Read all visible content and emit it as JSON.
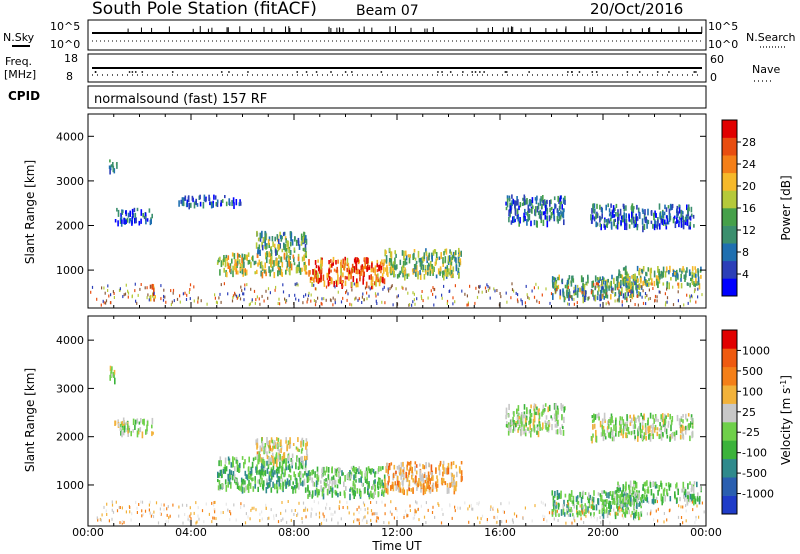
{
  "header": {
    "station": "South Pole Station (fitACF)",
    "beam": "Beam 07",
    "date": "20/Oct/2016"
  },
  "param_panel": {
    "nsky_label": "N.Sky",
    "nsky_ticks": [
      "10^5",
      "10^0"
    ],
    "nsearch_label": "N.Search",
    "nsearch_ticks": [
      "10^5",
      "10^0"
    ],
    "freq_label_1": "Freq.",
    "freq_label_2": "[MHz]",
    "freq_ticks": [
      "18",
      "8"
    ],
    "nave_label": "Nave",
    "nave_ticks": [
      "60",
      "0"
    ],
    "cpid_label": "CPID",
    "cpid_value": "normalsound (fast) 157 RF"
  },
  "colors": {
    "power_scale": [
      "#0000ff",
      "#2c3fb8",
      "#1f6fb0",
      "#3b8f6e",
      "#46a04a",
      "#b5c93a",
      "#f6b92a",
      "#f47f18",
      "#e84d10",
      "#e00000"
    ],
    "velocity_scale": [
      "#1f3cc8",
      "#2a5fb0",
      "#2f8a8c",
      "#3bb33b",
      "#6fd04a",
      "#c8c8c8",
      "#f2b23a",
      "#f47f18",
      "#ef5a10",
      "#e00000"
    ]
  },
  "chart_data": [
    {
      "type": "heatmap",
      "name": "power",
      "xlabel": "Time UT",
      "ylabel": "Slant Range [km]",
      "colorbar_label": "Power [dB]",
      "colorbar_ticks": [
        "28",
        "24",
        "20",
        "16",
        "12",
        "8",
        "4"
      ],
      "colorbar_range": [
        0,
        30
      ],
      "xlim_hours": [
        0,
        24
      ],
      "ylim": [
        150,
        4500
      ],
      "yticks": [
        "4000",
        "3000",
        "2000",
        "1000"
      ],
      "xticks": [
        "00:00",
        "04:00",
        "08:00",
        "12:00",
        "16:00",
        "20:00",
        "00:00"
      ],
      "regions": [
        {
          "t0": 5.0,
          "t1": 8.5,
          "r0": 950,
          "r1": 1400,
          "power": 16
        },
        {
          "t0": 6.5,
          "t1": 8.5,
          "r0": 1400,
          "r1": 1900,
          "power": 12
        },
        {
          "t0": 8.5,
          "t1": 11.5,
          "r0": 700,
          "r1": 1300,
          "power": 24
        },
        {
          "t0": 11.5,
          "t1": 14.5,
          "r0": 900,
          "r1": 1500,
          "power": 14
        },
        {
          "t0": 0.8,
          "t1": 1.1,
          "r0": 3200,
          "r1": 3500,
          "power": 10
        },
        {
          "t0": 1.0,
          "t1": 2.5,
          "r0": 2100,
          "r1": 2400,
          "power": 6
        },
        {
          "t0": 3.5,
          "t1": 6.0,
          "r0": 2500,
          "r1": 2700,
          "power": 6
        },
        {
          "t0": 2.3,
          "t1": 2.6,
          "r0": 400,
          "r1": 700,
          "power": 22
        },
        {
          "t0": 16.2,
          "t1": 18.5,
          "r0": 2100,
          "r1": 2700,
          "power": 8
        },
        {
          "t0": 19.5,
          "t1": 23.5,
          "r0": 2000,
          "r1": 2500,
          "power": 7
        },
        {
          "t0": 18.0,
          "t1": 21.5,
          "r0": 400,
          "r1": 900,
          "power": 12
        },
        {
          "t0": 20.5,
          "t1": 23.8,
          "r0": 700,
          "r1": 1100,
          "power": 14
        }
      ]
    },
    {
      "type": "heatmap",
      "name": "velocity",
      "xlabel": "Time UT",
      "ylabel": "Slant Range [km]",
      "colorbar_label": "Velocity [m s^-1]",
      "colorbar_ticks": [
        "1000",
        "500",
        "100",
        "25",
        "-25",
        "-100",
        "-500",
        "-1000"
      ],
      "colorbar_range": [
        -1200,
        1200
      ],
      "xlim_hours": [
        0,
        24
      ],
      "ylim": [
        150,
        4500
      ],
      "yticks": [
        "4000",
        "3000",
        "2000",
        "1000"
      ],
      "xticks": [
        "00:00",
        "04:00",
        "08:00",
        "12:00",
        "16:00",
        "20:00",
        "00:00"
      ],
      "regions": [
        {
          "t0": 5.0,
          "t1": 8.5,
          "r0": 950,
          "r1": 1600,
          "velocity": -300
        },
        {
          "t0": 6.5,
          "t1": 8.5,
          "r0": 1500,
          "r1": 2000,
          "velocity": 150
        },
        {
          "t0": 8.5,
          "t1": 11.5,
          "r0": 800,
          "r1": 1400,
          "velocity": -200
        },
        {
          "t0": 11.5,
          "t1": 14.5,
          "r0": 900,
          "r1": 1500,
          "velocity": 400
        },
        {
          "t0": 0.8,
          "t1": 1.1,
          "r0": 3200,
          "r1": 3500,
          "velocity": 10
        },
        {
          "t0": 1.0,
          "t1": 2.5,
          "r0": 2100,
          "r1": 2400,
          "velocity": 20
        },
        {
          "t0": 16.2,
          "t1": 18.5,
          "r0": 2100,
          "r1": 2700,
          "velocity": 10
        },
        {
          "t0": 19.5,
          "t1": 23.5,
          "r0": 2000,
          "r1": 2500,
          "velocity": 15
        },
        {
          "t0": 18.0,
          "t1": 21.5,
          "r0": 400,
          "r1": 900,
          "velocity": -300
        },
        {
          "t0": 20.5,
          "t1": 23.8,
          "r0": 700,
          "r1": 1100,
          "velocity": -200
        }
      ]
    }
  ]
}
